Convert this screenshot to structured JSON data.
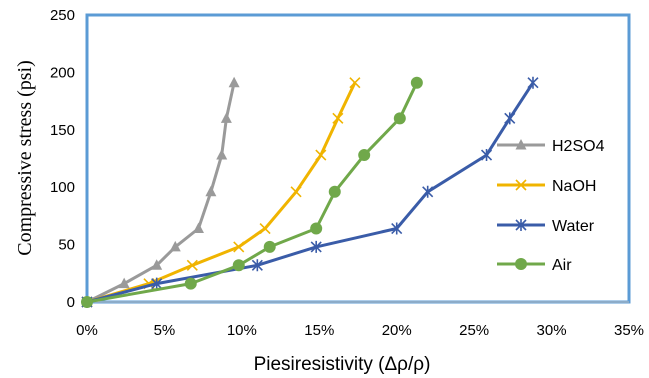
{
  "chart_data": {
    "type": "line",
    "title": "",
    "xlabel": "Piesiresistivity (Δρ/ρ)",
    "ylabel": "Compressive stress (psi)",
    "xlim": [
      0,
      0.35
    ],
    "ylim": [
      0,
      250
    ],
    "x_ticks": [
      "0%",
      "5%",
      "10%",
      "15%",
      "20%",
      "25%",
      "30%",
      "35%"
    ],
    "y_ticks": [
      "0",
      "50",
      "100",
      "150",
      "200",
      "250"
    ],
    "grid": false,
    "legend_position": "right",
    "series": [
      {
        "name": "H2SO4",
        "color": "#9a9a9a",
        "marker": "triangle",
        "x": [
          0,
          0.024,
          0.045,
          0.057,
          0.072,
          0.08,
          0.087,
          0.09,
          0.095
        ],
        "y": [
          0,
          16,
          32,
          48,
          64,
          96,
          128,
          160,
          191
        ]
      },
      {
        "name": "NaOH",
        "color": "#f0b400",
        "marker": "x",
        "x": [
          0,
          0.04,
          0.068,
          0.098,
          0.115,
          0.135,
          0.151,
          0.162,
          0.173
        ],
        "y": [
          0,
          16,
          32,
          48,
          64,
          96,
          128,
          160,
          191
        ]
      },
      {
        "name": "Water",
        "color": "#3a5ca8",
        "marker": "star",
        "x": [
          0,
          0.045,
          0.11,
          0.148,
          0.2,
          0.22,
          0.258,
          0.273,
          0.288
        ],
        "y": [
          0,
          16,
          32,
          48,
          64,
          96,
          128,
          160,
          191
        ]
      },
      {
        "name": "Air",
        "color": "#70a84a",
        "marker": "circle",
        "x": [
          0,
          0.067,
          0.098,
          0.118,
          0.148,
          0.16,
          0.179,
          0.202,
          0.213
        ],
        "y": [
          0,
          16,
          32,
          48,
          64,
          96,
          128,
          160,
          191
        ]
      }
    ]
  }
}
